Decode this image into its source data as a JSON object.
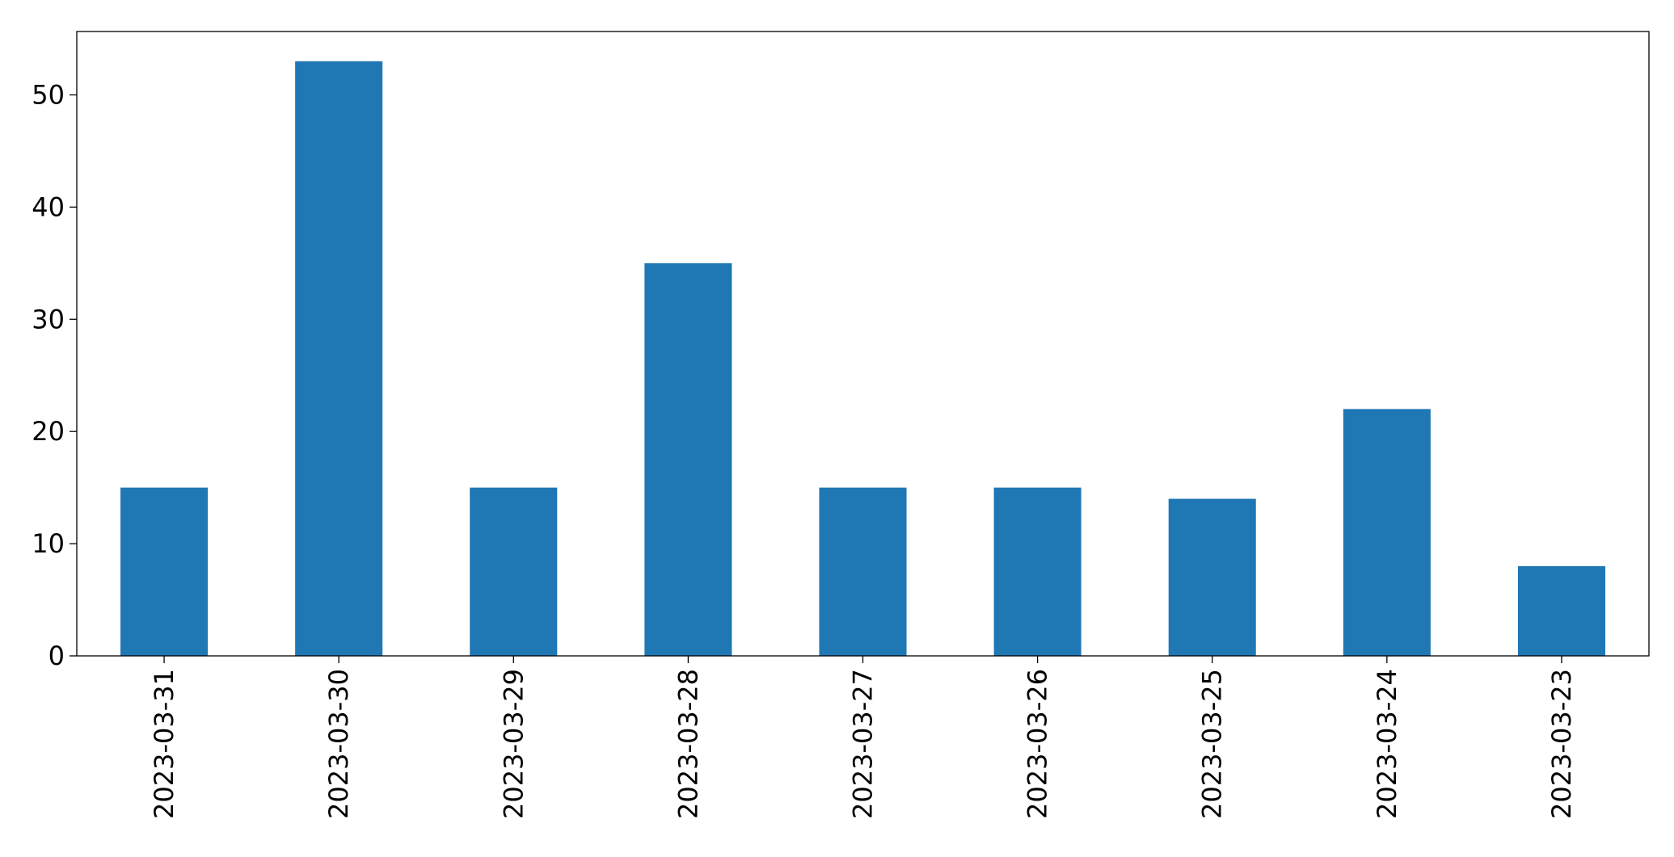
{
  "chart_data": {
    "type": "bar",
    "categories": [
      "2023-03-31",
      "2023-03-30",
      "2023-03-29",
      "2023-03-28",
      "2023-03-27",
      "2023-03-26",
      "2023-03-25",
      "2023-03-24",
      "2023-03-23"
    ],
    "values": [
      15,
      53,
      15,
      35,
      15,
      15,
      14,
      22,
      8
    ],
    "title": "",
    "xlabel": "",
    "ylabel": "",
    "ylim": [
      0,
      55.65
    ],
    "yticks": [
      0,
      10,
      20,
      30,
      40,
      50
    ],
    "grid": false,
    "legend": "none",
    "bar_color": "#1f77b4"
  }
}
